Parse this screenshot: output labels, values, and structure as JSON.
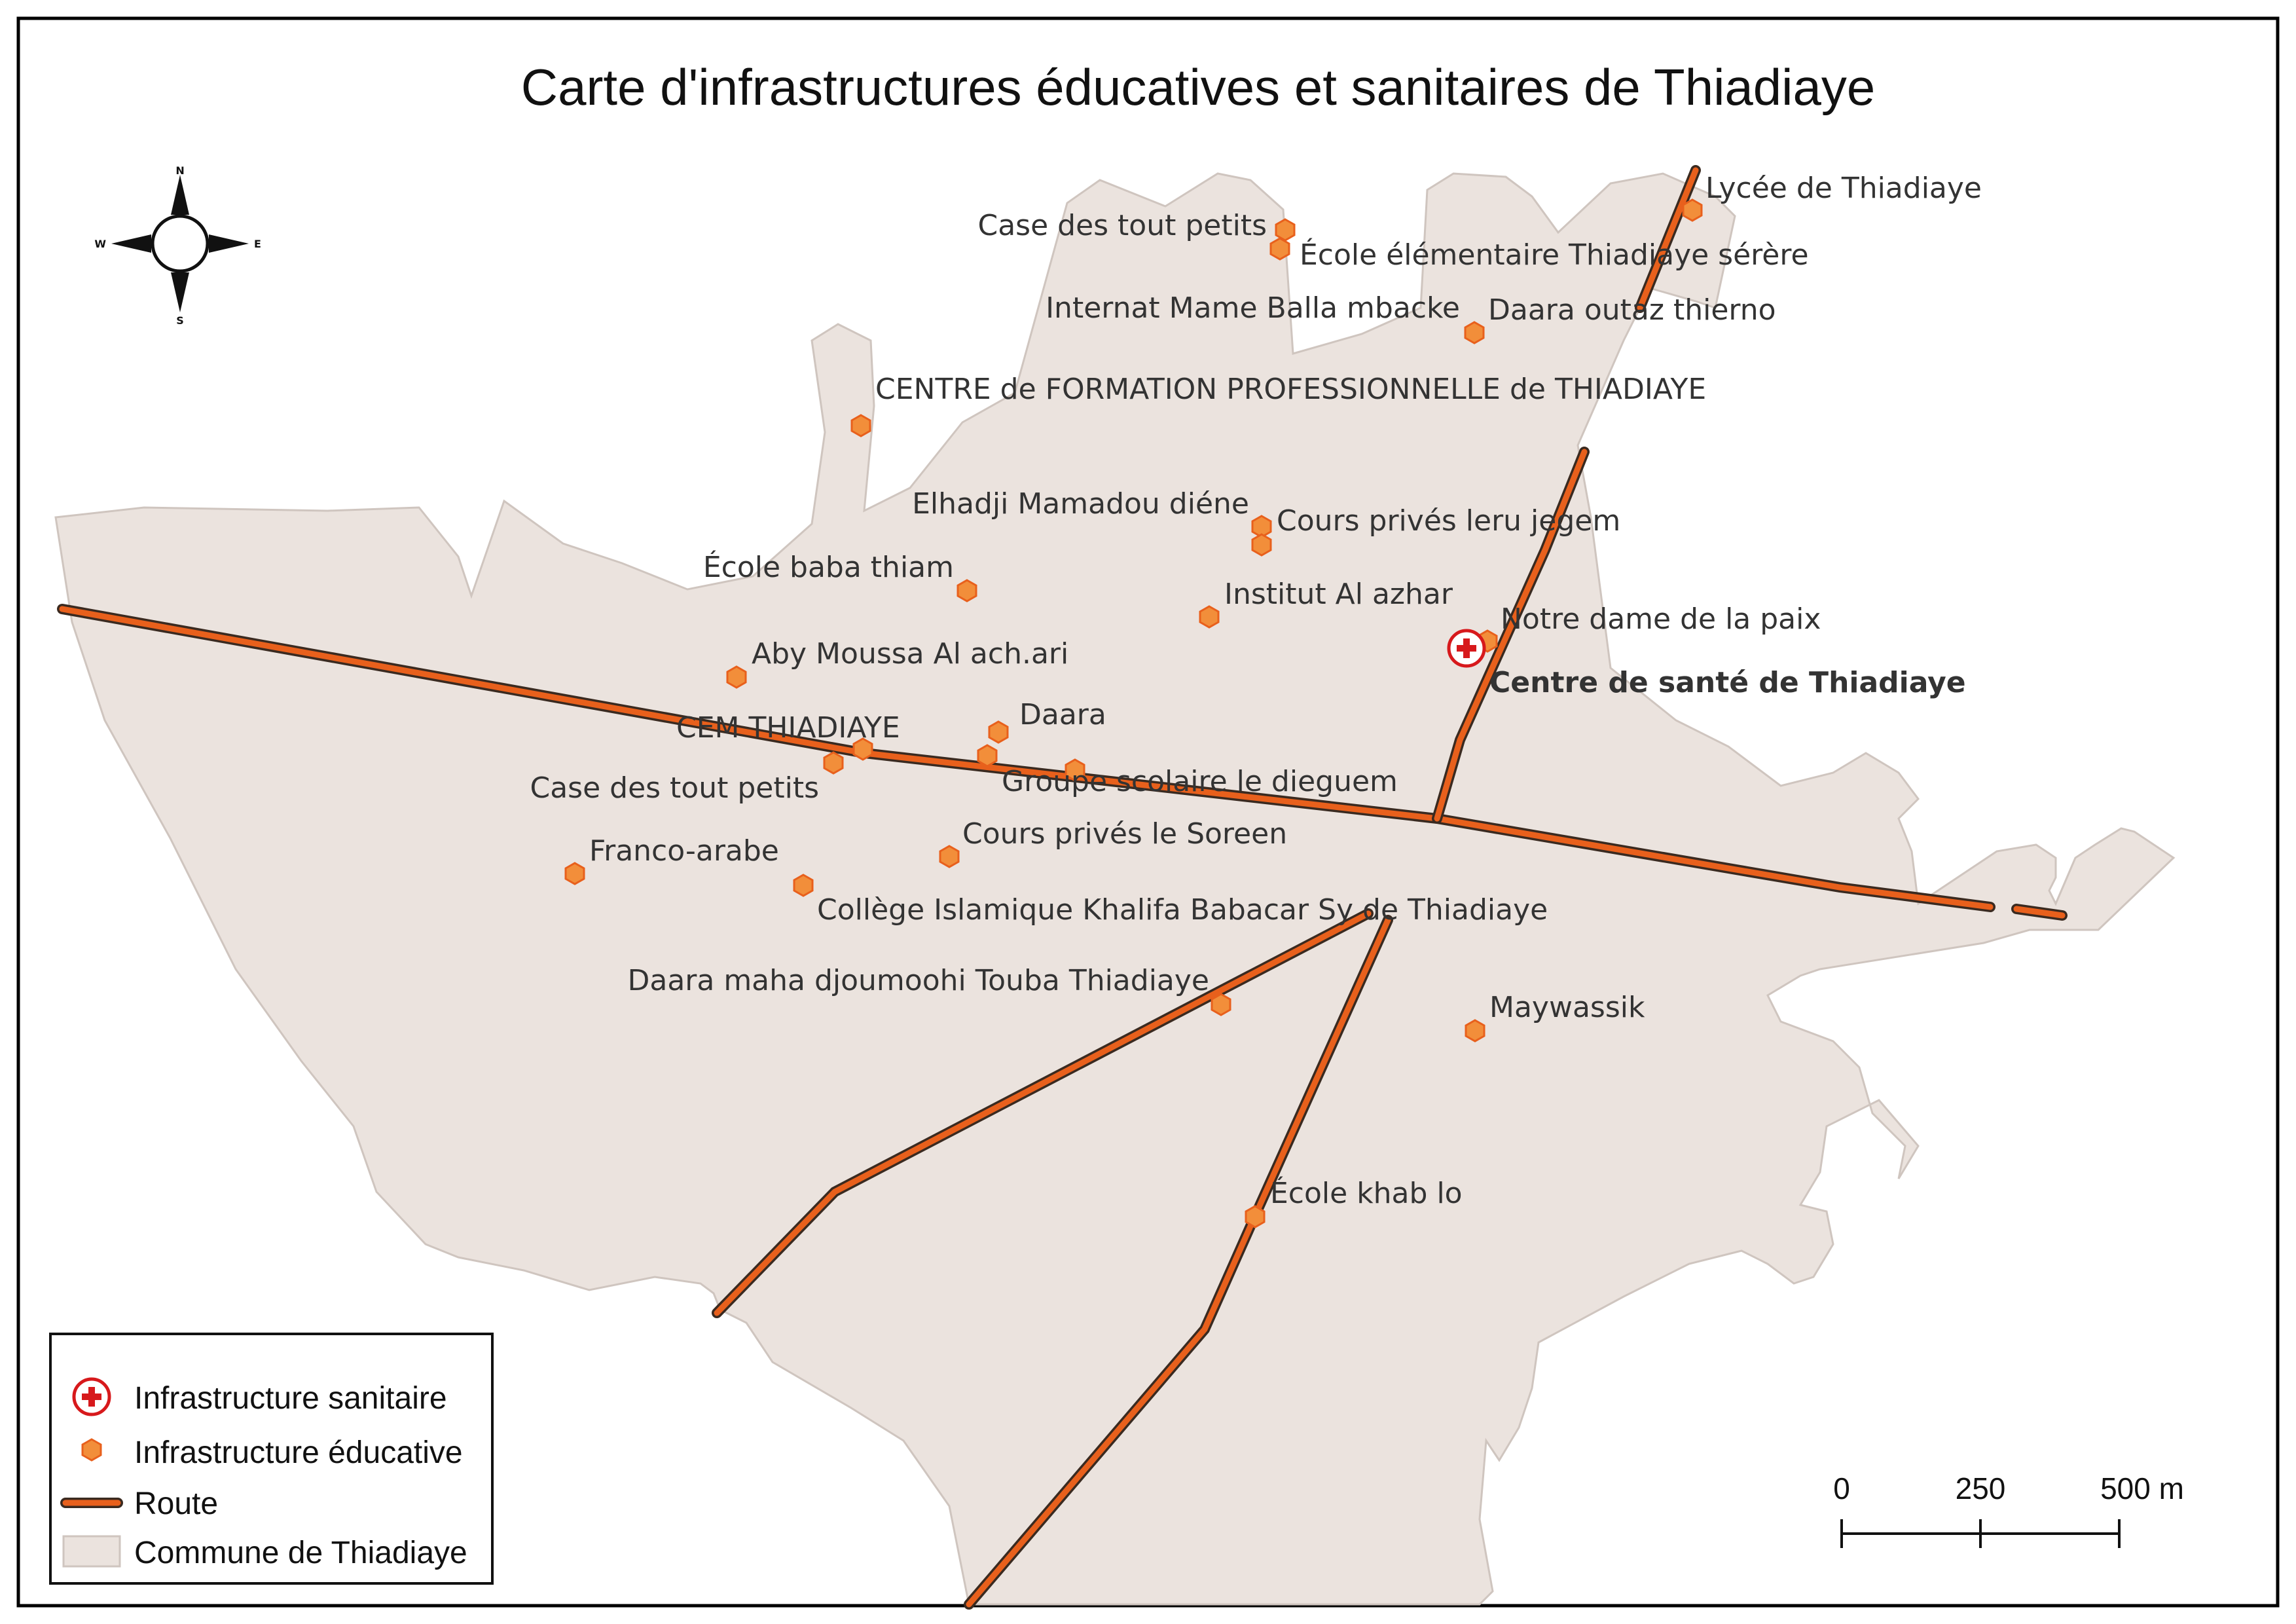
{
  "title": "Carte d'infrastructures éducatives et sanitaires de Thiadiaye",
  "compass": {
    "north": "N",
    "south": "S",
    "east": "E",
    "west": "W"
  },
  "colors": {
    "commune_fill": "#ebe3de",
    "commune_stroke": "#cfc5bf",
    "road": "#e8601c",
    "road_casing": "#3a2a20",
    "education": "#f28e3a",
    "health": "#d7191c"
  },
  "health_facilities": [
    {
      "name": "Centre de santé de Thiadiaye",
      "icon": "health-cross-icon"
    }
  ],
  "education_facilities": [
    {
      "name": "Lycée de Thiadiaye"
    },
    {
      "name": "Case des tout petits"
    },
    {
      "name": "École élémentaire Thiadiaye sérère"
    },
    {
      "name": "Internat Mame Balla mbacke"
    },
    {
      "name": "Daara outaz thierno"
    },
    {
      "name": "CENTRE de FORMATION PROFESSIONNELLE de THIADIAYE"
    },
    {
      "name": "Elhadji Mamadou diéne"
    },
    {
      "name": "Cours privés leru jegem"
    },
    {
      "name": "École baba thiam"
    },
    {
      "name": "Institut Al azhar"
    },
    {
      "name": "Notre dame de la paix"
    },
    {
      "name": "Aby Moussa Al ach.ari"
    },
    {
      "name": "CEM THIADIAYE"
    },
    {
      "name": "Daara"
    },
    {
      "name": "Case des tout petits"
    },
    {
      "name": "Groupe scolaire le dieguem"
    },
    {
      "name": "Franco-arabe"
    },
    {
      "name": "Cours privés le Soreen"
    },
    {
      "name": "Collège Islamique Khalifa Babacar Sy de Thiadiaye"
    },
    {
      "name": "Daara maha djoumoohi Touba Thiadiaye"
    },
    {
      "name": "Maywassik"
    },
    {
      "name": "École khab lo"
    }
  ],
  "legend": {
    "health": "Infrastructure sanitaire",
    "education": "Infrastructure éducative",
    "road": "Route",
    "commune": "Commune de Thiadiaye"
  },
  "scale_bar": {
    "labels": [
      "0",
      "250",
      "500 m"
    ],
    "unit": "m"
  }
}
